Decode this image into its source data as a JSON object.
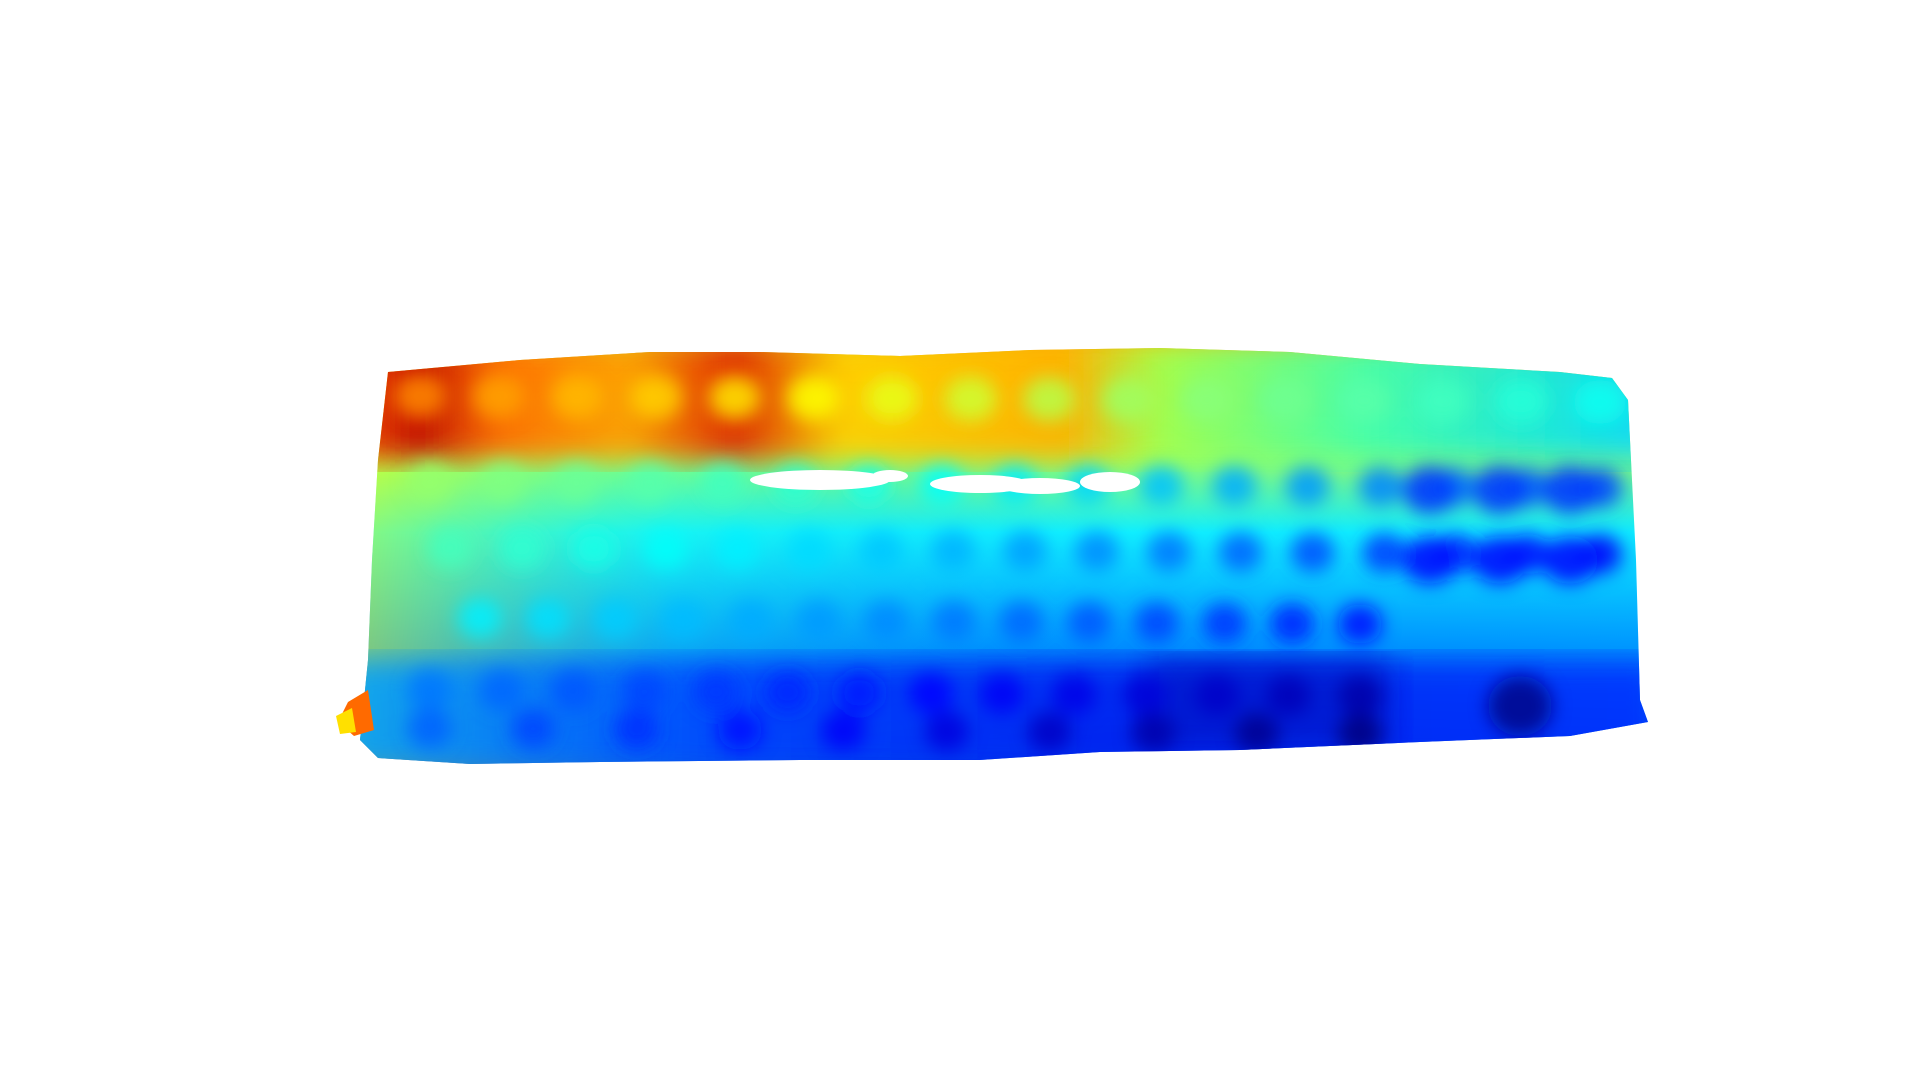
{
  "image": {
    "kind": "depth-map",
    "subject": "keyboard",
    "colormap": "jet",
    "background_color": "#ffffff",
    "colormap_stops": [
      "#000080",
      "#0000ff",
      "#0080ff",
      "#00ffff",
      "#80ff80",
      "#ffff00",
      "#ff8000",
      "#ff0000",
      "#800000"
    ],
    "key_rows": [
      {
        "name": "function-row",
        "keys": 16,
        "depth_start": 0.8,
        "depth_end": 0.45
      },
      {
        "name": "number-row",
        "keys": 17,
        "depth_start": 0.58,
        "depth_end": 0.25
      },
      {
        "name": "qwerty-row",
        "keys": 17,
        "depth_start": 0.5,
        "depth_end": 0.18
      },
      {
        "name": "home-row",
        "keys": 14,
        "depth_start": 0.42,
        "depth_end": 0.2
      },
      {
        "name": "shift-row",
        "keys": 14,
        "depth_start": 0.3,
        "depth_end": 0.1
      },
      {
        "name": "bottom-row",
        "keys": 10,
        "depth_start": 0.28,
        "depth_end": 0.05
      }
    ]
  }
}
